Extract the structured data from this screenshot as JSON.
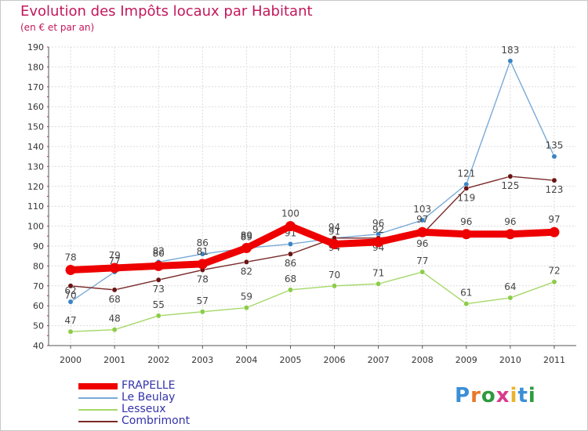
{
  "header": {
    "title": "Evolution des Impôts locaux par Habitant",
    "subtitle": "(en € et par an)"
  },
  "logo": {
    "text": "Proxiti",
    "letter_colors": [
      "#3b8fd6",
      "#e8782a",
      "#2e9a3e",
      "#d83a8c",
      "#e8b42a",
      "#3b8fd6",
      "#2e9a3e"
    ]
  },
  "chart_data": {
    "type": "line",
    "title": "Evolution des Impôts locaux par Habitant",
    "subtitle": "(en € et par an)",
    "xlabel": "",
    "ylabel": "",
    "ylim": [
      40,
      190
    ],
    "yticks": [
      40,
      50,
      60,
      70,
      80,
      90,
      100,
      110,
      120,
      130,
      140,
      150,
      160,
      170,
      180,
      190
    ],
    "grid": true,
    "legend_position": "bottom-left",
    "categories": [
      "2000",
      "2001",
      "2002",
      "2003",
      "2004",
      "2005",
      "2006",
      "2007",
      "2008",
      "2009",
      "2010",
      "2011"
    ],
    "series": [
      {
        "name": "FRAPELLE",
        "color": "#ee0000",
        "values": [
          78,
          79,
          80,
          81,
          89,
          100,
          91,
          92,
          97,
          96,
          96,
          97
        ]
      },
      {
        "name": "Le Beulay",
        "color": "#7aaad6",
        "marker": "#3a84c4",
        "values": [
          62,
          77,
          82,
          86,
          89,
          91,
          94,
          96,
          103,
          121,
          183,
          135
        ]
      },
      {
        "name": "Lesseux",
        "color": "#a6d86a",
        "marker": "#8ccc48",
        "values": [
          47,
          48,
          55,
          57,
          59,
          68,
          70,
          71,
          77,
          61,
          64,
          72
        ]
      },
      {
        "name": "Combrimont",
        "color": "#7a2a2a",
        "marker": "#6a1414",
        "values": [
          70,
          68,
          73,
          78,
          82,
          86,
          94,
          94,
          96,
          119,
          125,
          123
        ]
      }
    ]
  }
}
